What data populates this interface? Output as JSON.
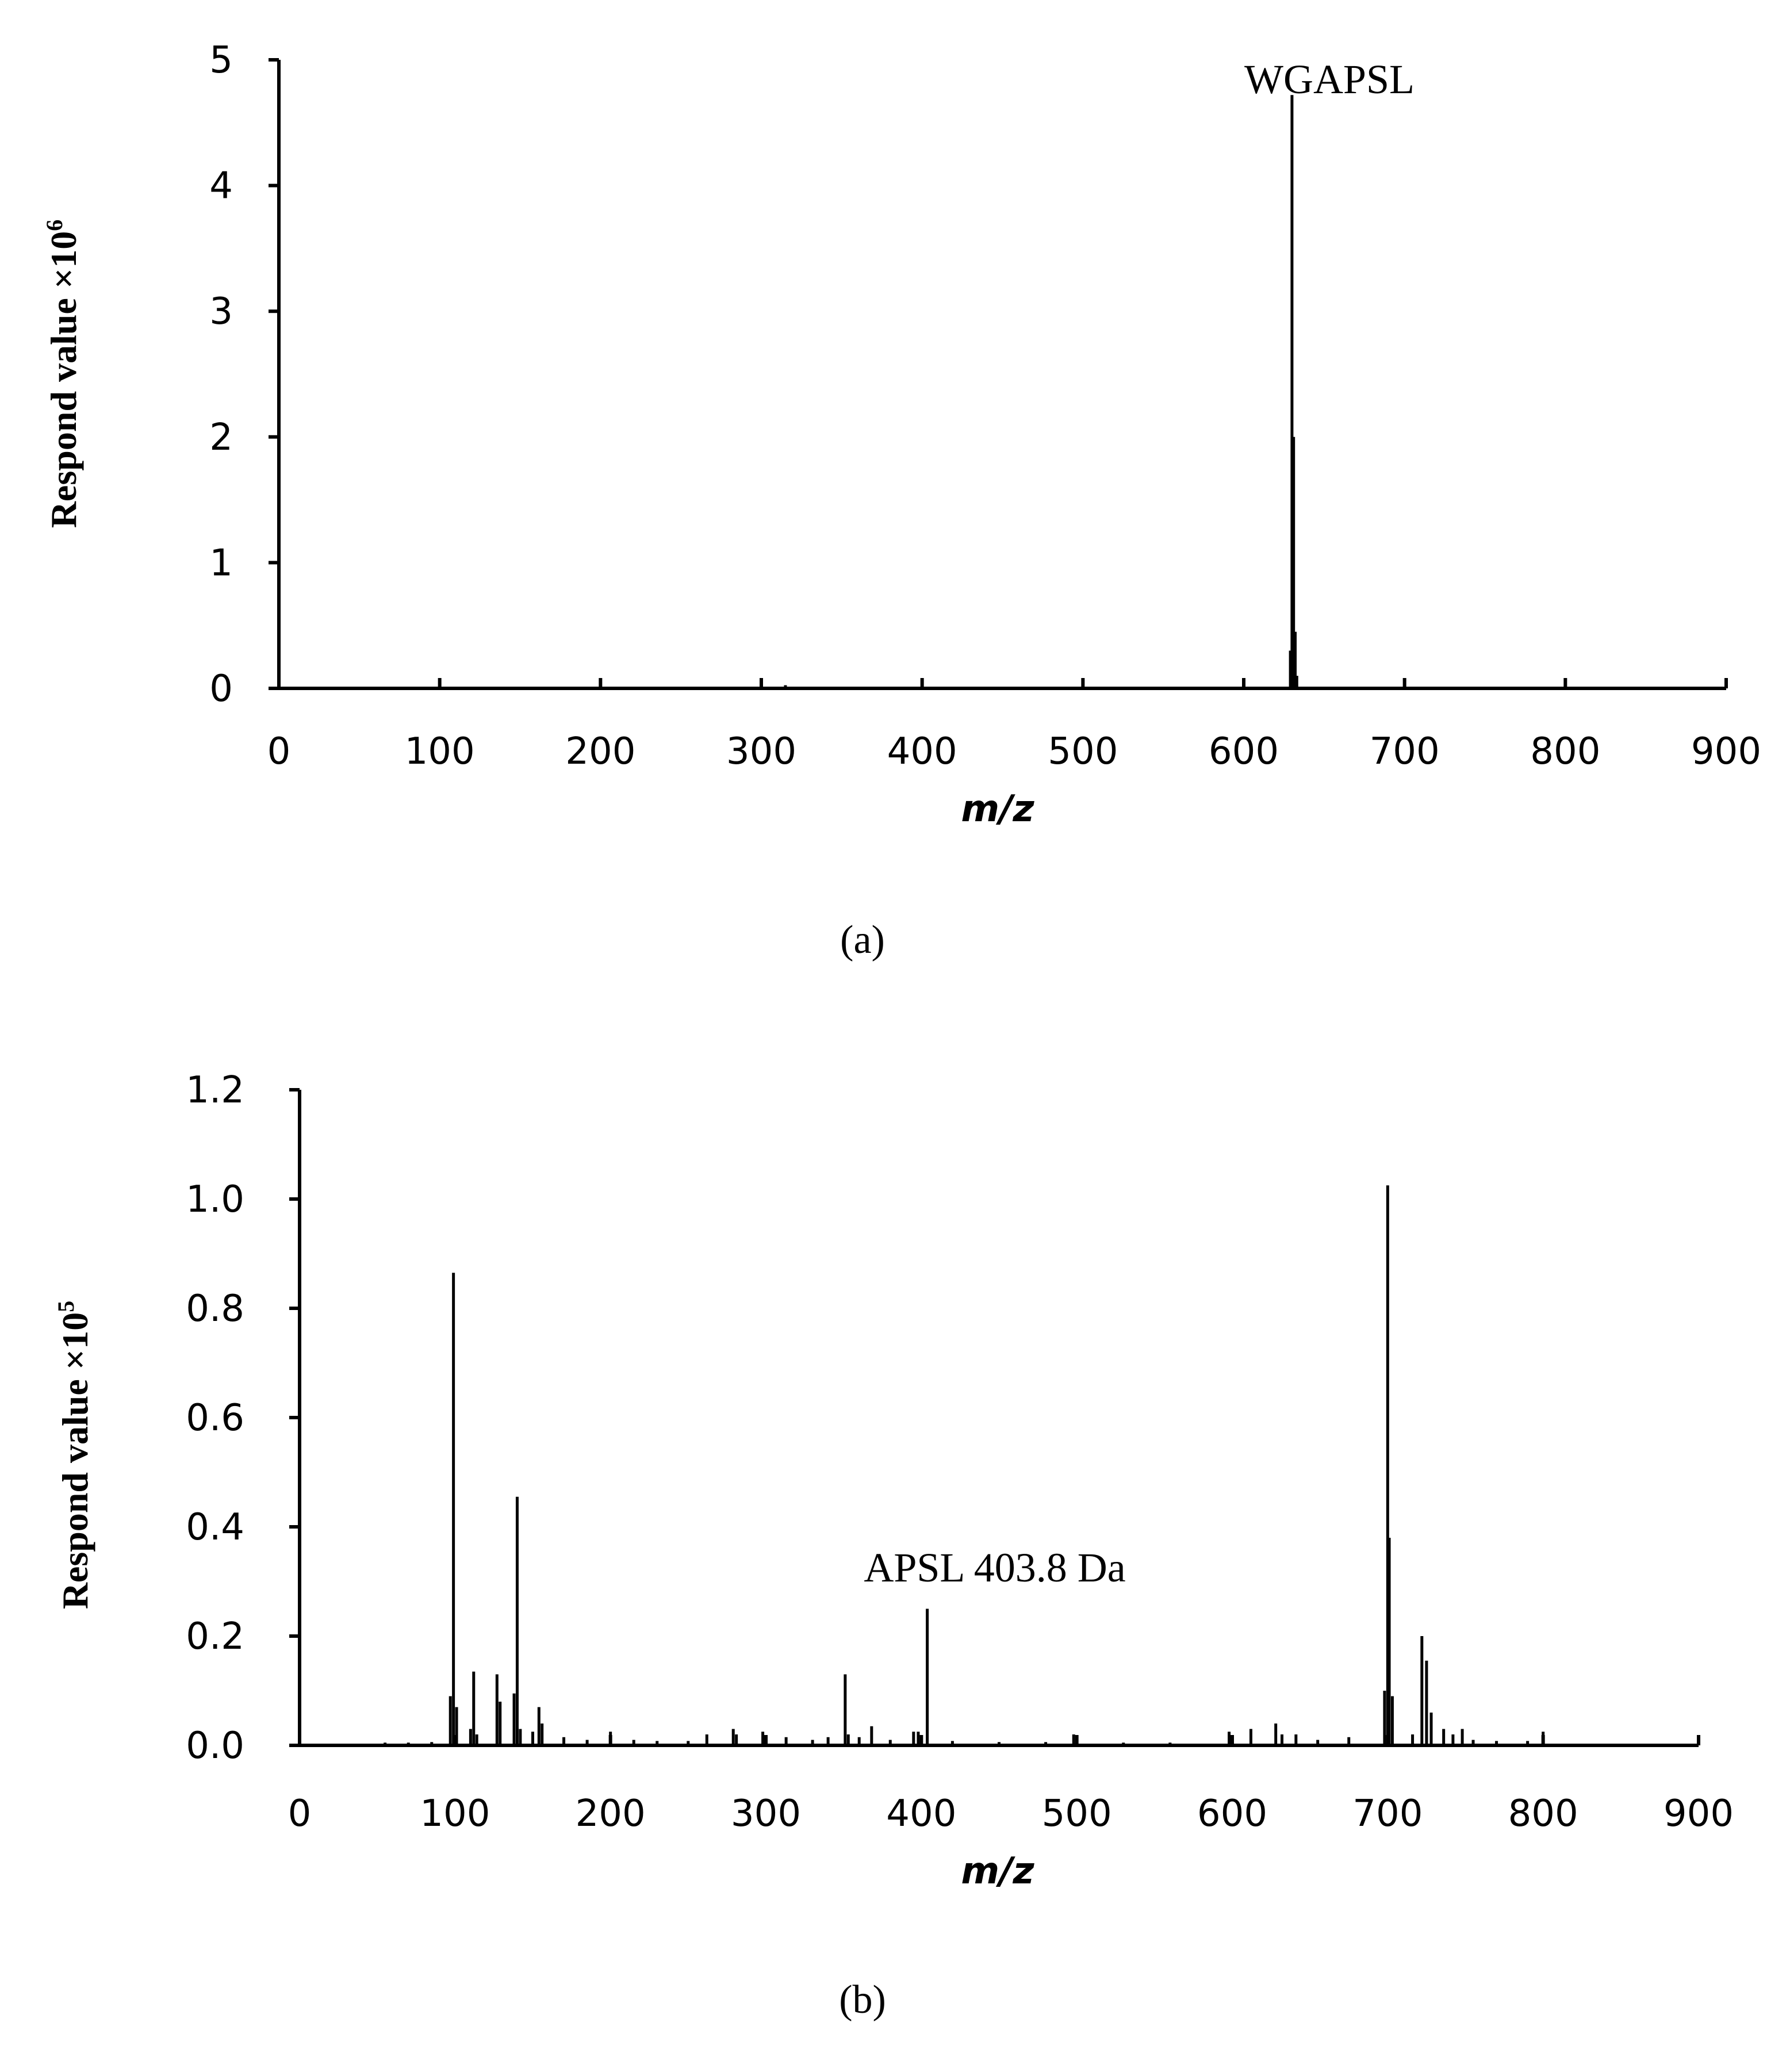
{
  "chart_data": [
    {
      "id": "a",
      "type": "line",
      "caption": "(a)",
      "xlabel": "m/z",
      "ylabel": "Respond value ×10",
      "ylabel_sup": "6",
      "xlim": [
        0,
        900
      ],
      "ylim": [
        0,
        5
      ],
      "xticks": [
        0,
        100,
        200,
        300,
        400,
        500,
        600,
        700,
        800,
        900
      ],
      "yticks": [
        "0",
        "1",
        "2",
        "3",
        "4",
        "5"
      ],
      "grid": false,
      "annotations": [
        {
          "text": "WGAPSL",
          "x": 630,
          "y": 4.72
        }
      ],
      "series": [
        {
          "name": "spectrum",
          "peaks": [
            {
              "x": 136,
              "y": 0.01
            },
            {
              "x": 315,
              "y": 0.025
            },
            {
              "x": 629,
              "y": 0.3
            },
            {
              "x": 630,
              "y": 4.72
            },
            {
              "x": 631,
              "y": 2.0
            },
            {
              "x": 632,
              "y": 0.45
            },
            {
              "x": 633,
              "y": 0.1
            },
            {
              "x": 647,
              "y": 0.01
            }
          ]
        }
      ]
    },
    {
      "id": "b",
      "type": "line",
      "caption": "(b)",
      "xlabel": "m/z",
      "ylabel": "Respond value ×10",
      "ylabel_sup": "5",
      "xlim": [
        0,
        900
      ],
      "ylim": [
        0,
        1.2
      ],
      "xticks": [
        0,
        100,
        200,
        300,
        400,
        500,
        600,
        700,
        800,
        900
      ],
      "yticks": [
        "0.0",
        "0.2",
        "0.4",
        "0.6",
        "0.8",
        "1.0",
        "1.2"
      ],
      "grid": false,
      "annotations": [
        {
          "text": "APSL 403.8 Da",
          "x": 403.8,
          "y": 0.25
        }
      ],
      "series": [
        {
          "name": "spectrum",
          "peaks": [
            {
              "x": 55,
              "y": 0.005
            },
            {
              "x": 70,
              "y": 0.005
            },
            {
              "x": 85,
              "y": 0.006
            },
            {
              "x": 97,
              "y": 0.09
            },
            {
              "x": 99,
              "y": 0.865
            },
            {
              "x": 101,
              "y": 0.07
            },
            {
              "x": 110,
              "y": 0.03
            },
            {
              "x": 112,
              "y": 0.135
            },
            {
              "x": 114,
              "y": 0.02
            },
            {
              "x": 127,
              "y": 0.13
            },
            {
              "x": 129,
              "y": 0.08
            },
            {
              "x": 138,
              "y": 0.095
            },
            {
              "x": 140,
              "y": 0.455
            },
            {
              "x": 142,
              "y": 0.03
            },
            {
              "x": 150,
              "y": 0.025
            },
            {
              "x": 154,
              "y": 0.07
            },
            {
              "x": 156,
              "y": 0.04
            },
            {
              "x": 170,
              "y": 0.015
            },
            {
              "x": 185,
              "y": 0.01
            },
            {
              "x": 200,
              "y": 0.025
            },
            {
              "x": 215,
              "y": 0.01
            },
            {
              "x": 230,
              "y": 0.008
            },
            {
              "x": 250,
              "y": 0.008
            },
            {
              "x": 262,
              "y": 0.02
            },
            {
              "x": 279,
              "y": 0.03
            },
            {
              "x": 281,
              "y": 0.02
            },
            {
              "x": 298,
              "y": 0.025
            },
            {
              "x": 313,
              "y": 0.015
            },
            {
              "x": 330,
              "y": 0.01
            },
            {
              "x": 340,
              "y": 0.015
            },
            {
              "x": 351,
              "y": 0.13
            },
            {
              "x": 353,
              "y": 0.02
            },
            {
              "x": 360,
              "y": 0.015
            },
            {
              "x": 368,
              "y": 0.035
            },
            {
              "x": 380,
              "y": 0.01
            },
            {
              "x": 395,
              "y": 0.025
            },
            {
              "x": 398,
              "y": 0.025
            },
            {
              "x": 403.8,
              "y": 0.25
            },
            {
              "x": 420,
              "y": 0.008
            },
            {
              "x": 450,
              "y": 0.006
            },
            {
              "x": 480,
              "y": 0.006
            },
            {
              "x": 498,
              "y": 0.02
            },
            {
              "x": 530,
              "y": 0.005
            },
            {
              "x": 560,
              "y": 0.005
            },
            {
              "x": 598,
              "y": 0.025
            },
            {
              "x": 612,
              "y": 0.03
            },
            {
              "x": 628,
              "y": 0.04
            },
            {
              "x": 632,
              "y": 0.02
            },
            {
              "x": 641,
              "y": 0.02
            },
            {
              "x": 655,
              "y": 0.01
            },
            {
              "x": 675,
              "y": 0.015
            },
            {
              "x": 698,
              "y": 0.1
            },
            {
              "x": 700,
              "y": 1.025
            },
            {
              "x": 701,
              "y": 0.38
            },
            {
              "x": 703,
              "y": 0.09
            },
            {
              "x": 716,
              "y": 0.02
            },
            {
              "x": 722,
              "y": 0.2
            },
            {
              "x": 725,
              "y": 0.155
            },
            {
              "x": 728,
              "y": 0.06
            },
            {
              "x": 736,
              "y": 0.03
            },
            {
              "x": 742,
              "y": 0.02
            },
            {
              "x": 748,
              "y": 0.03
            },
            {
              "x": 755,
              "y": 0.01
            },
            {
              "x": 770,
              "y": 0.008
            },
            {
              "x": 790,
              "y": 0.008
            },
            {
              "x": 800,
              "y": 0.025
            }
          ]
        }
      ]
    }
  ]
}
